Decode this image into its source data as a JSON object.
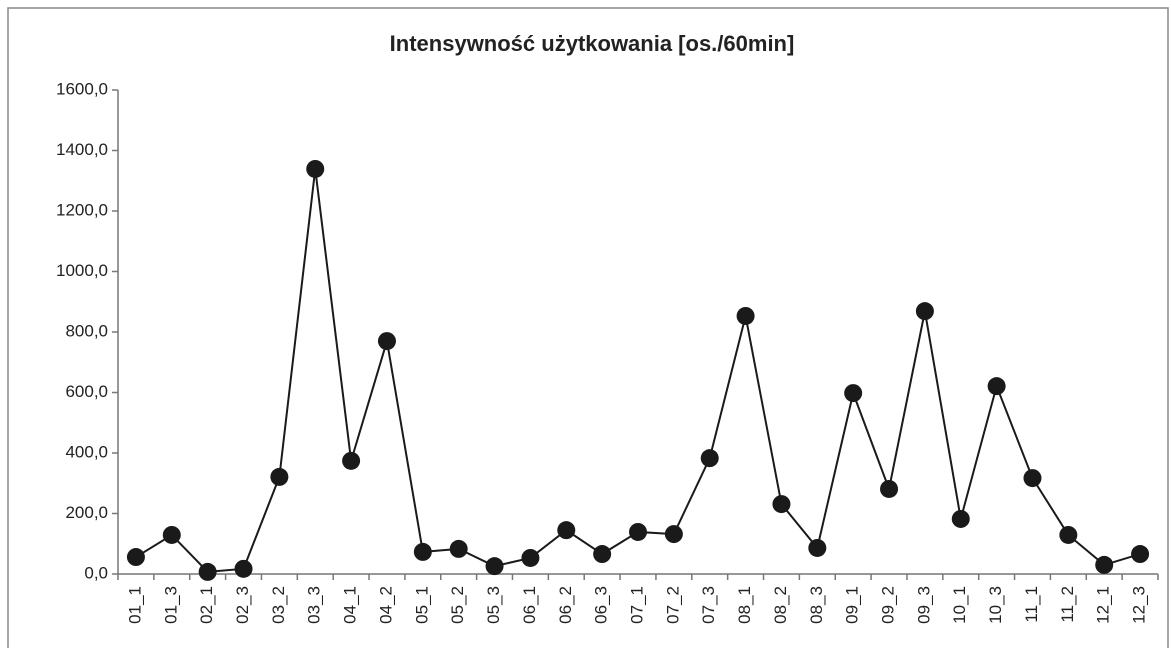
{
  "chart_data": {
    "type": "line",
    "title": "Intensywność użytkowania [os./60min]",
    "categories": [
      "01_1",
      "01_3",
      "02_1",
      "02_3",
      "03_2",
      "03_3",
      "04_1",
      "04_2",
      "05_1",
      "05_2",
      "05_3",
      "06_1",
      "06_2",
      "06_3",
      "07_1",
      "07_2",
      "07_3",
      "08_1",
      "08_2",
      "08_3",
      "09_1",
      "09_2",
      "09_3",
      "10_1",
      "10_3",
      "11_1",
      "11_2",
      "12_1",
      "12_3"
    ],
    "values": [
      56,
      129,
      7,
      17,
      321,
      1339,
      374,
      770,
      73,
      83,
      26,
      53,
      145,
      66,
      139,
      132,
      383,
      853,
      231,
      86,
      598,
      281,
      869,
      182,
      621,
      317,
      129,
      30,
      66
    ],
    "color": "#1a1a1a",
    "ylim": [
      0,
      1600
    ],
    "yticks": [
      {
        "value": 0,
        "label": "0,0"
      },
      {
        "value": 200,
        "label": "200,0"
      },
      {
        "value": 400,
        "label": "400,0"
      },
      {
        "value": 600,
        "label": "600,0"
      },
      {
        "value": 800,
        "label": "800,0"
      },
      {
        "value": 1000,
        "label": "1000,0"
      },
      {
        "value": 1200,
        "label": "1200,0"
      },
      {
        "value": 1400,
        "label": "1400,0"
      },
      {
        "value": 1600,
        "label": "1600,0"
      }
    ],
    "grid": false
  }
}
